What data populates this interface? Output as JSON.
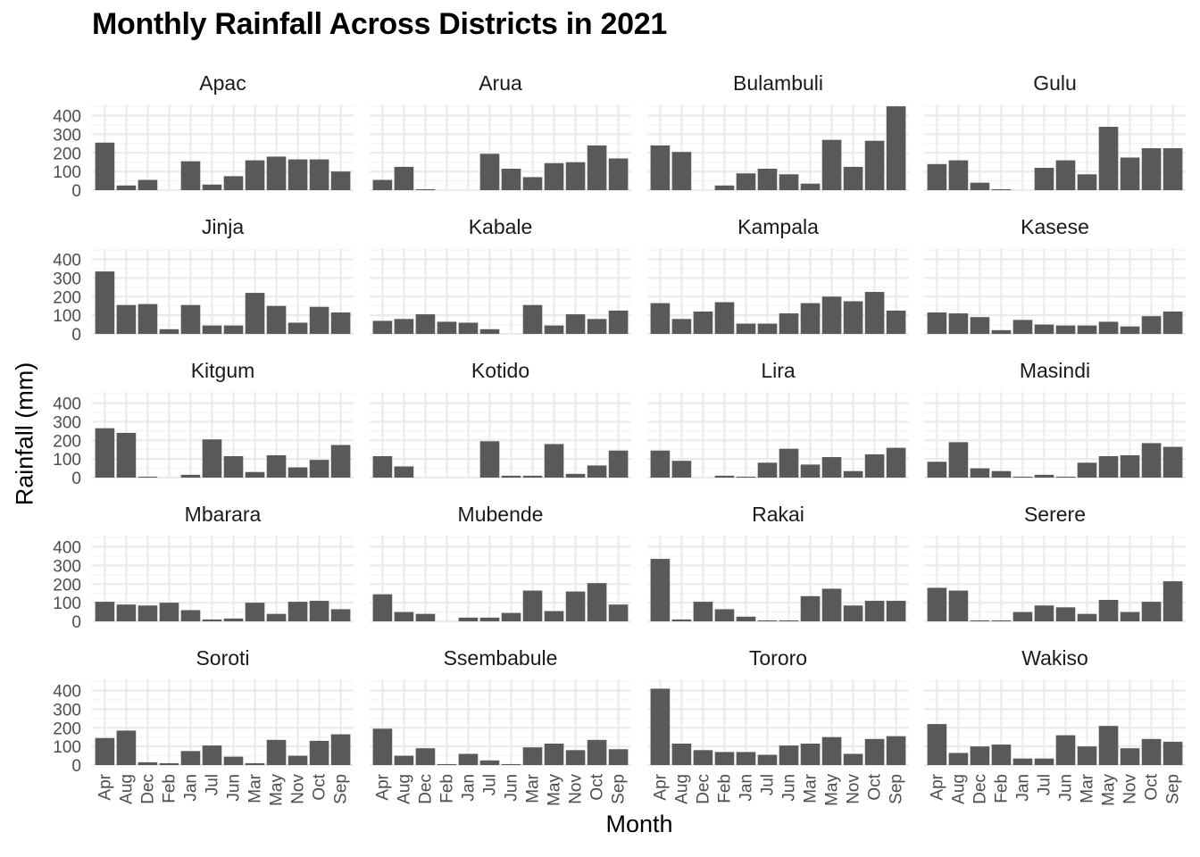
{
  "chart_data": {
    "type": "bar",
    "title": "Monthly Rainfall Across Districts in 2021",
    "xlabel": "Month",
    "ylabel": "Rainfall (mm)",
    "ylim": [
      0,
      460
    ],
    "yticks": [
      0,
      100,
      200,
      300,
      400
    ],
    "bar_color": "#595959",
    "grid": true,
    "layout": "facet_wrap, 5 rows x 4 columns",
    "categories": [
      "Apr",
      "Aug",
      "Dec",
      "Feb",
      "Jan",
      "Jul",
      "Jun",
      "Mar",
      "May",
      "Nov",
      "Oct",
      "Sep"
    ],
    "panels": [
      {
        "name": "Apac",
        "values": [
          255,
          25,
          55,
          0,
          155,
          30,
          75,
          160,
          180,
          165,
          165,
          100
        ]
      },
      {
        "name": "Arua",
        "values": [
          55,
          125,
          5,
          0,
          0,
          195,
          115,
          70,
          145,
          150,
          240,
          170
        ]
      },
      {
        "name": "Bulambuli",
        "values": [
          240,
          205,
          0,
          25,
          90,
          115,
          85,
          35,
          270,
          125,
          265,
          450
        ]
      },
      {
        "name": "Gulu",
        "values": [
          140,
          160,
          40,
          5,
          0,
          120,
          160,
          85,
          340,
          175,
          225,
          225
        ]
      },
      {
        "name": "Jinja",
        "values": [
          335,
          155,
          160,
          25,
          155,
          45,
          45,
          220,
          150,
          60,
          145,
          115
        ]
      },
      {
        "name": "Kabale",
        "values": [
          70,
          80,
          105,
          65,
          60,
          25,
          0,
          155,
          45,
          105,
          80,
          125
        ]
      },
      {
        "name": "Kampala",
        "values": [
          165,
          80,
          120,
          170,
          55,
          55,
          110,
          165,
          200,
          175,
          225,
          125
        ]
      },
      {
        "name": "Kasese",
        "values": [
          115,
          110,
          90,
          20,
          75,
          50,
          45,
          45,
          65,
          40,
          95,
          120
        ]
      },
      {
        "name": "Kitgum",
        "values": [
          265,
          240,
          5,
          0,
          15,
          205,
          115,
          30,
          120,
          55,
          95,
          175
        ]
      },
      {
        "name": "Kotido",
        "values": [
          115,
          60,
          0,
          0,
          0,
          195,
          10,
          10,
          180,
          20,
          65,
          145
        ]
      },
      {
        "name": "Lira",
        "values": [
          145,
          90,
          0,
          10,
          5,
          80,
          155,
          70,
          110,
          35,
          125,
          160
        ]
      },
      {
        "name": "Masindi",
        "values": [
          85,
          190,
          50,
          35,
          5,
          15,
          5,
          80,
          115,
          120,
          185,
          165
        ]
      },
      {
        "name": "Mbarara",
        "values": [
          105,
          90,
          85,
          100,
          60,
          10,
          15,
          100,
          40,
          105,
          110,
          65
        ]
      },
      {
        "name": "Mubende",
        "values": [
          145,
          50,
          40,
          0,
          20,
          20,
          45,
          165,
          55,
          160,
          205,
          90
        ]
      },
      {
        "name": "Rakai",
        "values": [
          335,
          10,
          105,
          65,
          25,
          5,
          5,
          135,
          175,
          85,
          110,
          110
        ]
      },
      {
        "name": "Serere",
        "values": [
          180,
          165,
          5,
          5,
          50,
          85,
          75,
          40,
          115,
          50,
          105,
          215
        ]
      },
      {
        "name": "Soroti",
        "values": [
          145,
          185,
          15,
          10,
          75,
          105,
          45,
          10,
          135,
          50,
          130,
          165
        ]
      },
      {
        "name": "Ssembabule",
        "values": [
          195,
          50,
          90,
          5,
          60,
          25,
          5,
          95,
          115,
          80,
          135,
          85
        ]
      },
      {
        "name": "Tororo",
        "values": [
          410,
          115,
          80,
          70,
          70,
          55,
          105,
          115,
          150,
          60,
          140,
          155
        ]
      },
      {
        "name": "Wakiso",
        "values": [
          220,
          65,
          100,
          110,
          35,
          35,
          160,
          100,
          210,
          90,
          140,
          125
        ]
      }
    ]
  }
}
